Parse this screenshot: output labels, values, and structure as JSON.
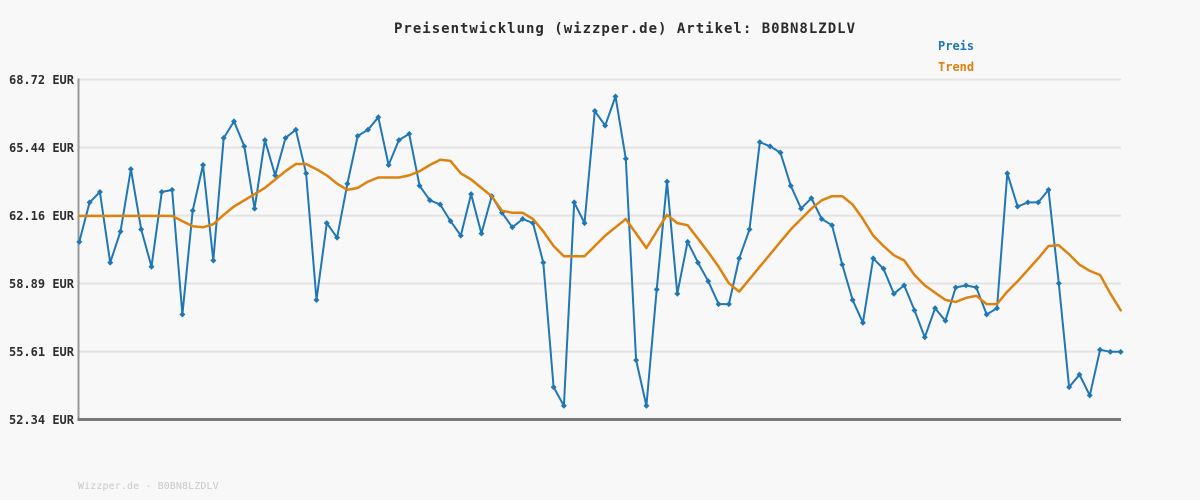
{
  "header": {
    "title": "Preisentwicklung (wizzper.de) Artikel: B0BN8LZDLV"
  },
  "legend": {
    "items": [
      {
        "label": "Preis",
        "color": "#1f77b4"
      },
      {
        "label": "Trend",
        "color": "#dd820f"
      }
    ]
  },
  "footer": {
    "watermark": "Wizzper.de - B0BN8LZDLV"
  },
  "colors": {
    "background": "#f8f8f8",
    "gridline": "#e3e3e3",
    "axis_left": "#999999",
    "axis_bottom": "#787878",
    "price_line": "#1f77b4",
    "trend_line": "#dd820f"
  },
  "chart_data": {
    "type": "line",
    "title": "Preisentwicklung (wizzper.de) Artikel: B0BN8LZDLV",
    "xlabel": "",
    "ylabel": "",
    "x_tick_labels": [],
    "n_points": 102,
    "grid": true,
    "legend_position": "top-right",
    "ylim": [
      52.34,
      68.72
    ],
    "y_axis": {
      "tick_labels": [
        "68.72 EUR",
        "65.44 EUR",
        "62.16 EUR",
        "58.89 EUR",
        "55.61 EUR",
        "52.34 EUR"
      ],
      "tick_values": [
        68.72,
        65.44,
        62.16,
        58.89,
        55.61,
        52.34
      ]
    },
    "series": [
      {
        "name": "Preis",
        "color": "#1f77b4",
        "marker": "diamond",
        "line_width": 2,
        "values": [
          60.9,
          62.8,
          63.3,
          59.9,
          61.4,
          64.4,
          61.5,
          59.7,
          63.3,
          63.4,
          57.4,
          62.4,
          64.6,
          60.0,
          65.9,
          66.7,
          65.5,
          62.5,
          65.8,
          64.1,
          65.9,
          66.3,
          64.2,
          58.1,
          61.8,
          61.1,
          63.7,
          66.0,
          66.3,
          66.9,
          64.6,
          65.8,
          66.1,
          63.6,
          62.9,
          62.7,
          61.9,
          61.2,
          63.2,
          61.3,
          63.1,
          62.3,
          61.6,
          62.0,
          61.8,
          59.9,
          53.9,
          53.0,
          62.8,
          61.8,
          67.2,
          66.5,
          67.9,
          64.9,
          55.2,
          53.0,
          58.6,
          63.8,
          58.4,
          60.9,
          59.9,
          59.0,
          57.9,
          57.9,
          60.1,
          61.5,
          65.7,
          65.5,
          65.2,
          63.6,
          62.5,
          63.0,
          62.0,
          61.7,
          59.8,
          58.1,
          57.0,
          60.1,
          59.6,
          58.4,
          58.8,
          57.6,
          56.3,
          57.7,
          57.1,
          58.7,
          58.8,
          58.7,
          57.4,
          57.7,
          64.2,
          62.6,
          62.8,
          62.8,
          63.4,
          58.9,
          53.9,
          54.5,
          53.5,
          55.7,
          55.6,
          55.6
        ]
      },
      {
        "name": "Trend",
        "color": "#dd820f",
        "marker": "none",
        "line_width": 2.5,
        "values": [
          62.15,
          62.15,
          62.15,
          62.15,
          62.15,
          62.15,
          62.15,
          62.15,
          62.15,
          62.15,
          61.9,
          61.65,
          61.6,
          61.75,
          62.2,
          62.6,
          62.9,
          63.2,
          63.5,
          63.9,
          64.3,
          64.65,
          64.65,
          64.4,
          64.1,
          63.7,
          63.4,
          63.5,
          63.8,
          64.0,
          64.0,
          64.0,
          64.1,
          64.3,
          64.6,
          64.85,
          64.8,
          64.2,
          63.9,
          63.5,
          63.1,
          62.4,
          62.3,
          62.3,
          62.0,
          61.4,
          60.7,
          60.2,
          60.2,
          60.2,
          60.7,
          61.2,
          61.6,
          62.0,
          61.3,
          60.6,
          61.4,
          62.2,
          61.8,
          61.7,
          61.05,
          60.4,
          59.7,
          58.9,
          58.5,
          59.1,
          59.7,
          60.3,
          60.9,
          61.5,
          62.0,
          62.5,
          62.9,
          63.1,
          63.1,
          62.7,
          62.0,
          61.2,
          60.7,
          60.25,
          60.0,
          59.3,
          58.8,
          58.45,
          58.1,
          58.0,
          58.2,
          58.3,
          57.9,
          57.9,
          58.5,
          59.0,
          59.55,
          60.1,
          60.7,
          60.73,
          60.3,
          59.8,
          59.5,
          59.3,
          58.4,
          57.6
        ]
      }
    ]
  }
}
